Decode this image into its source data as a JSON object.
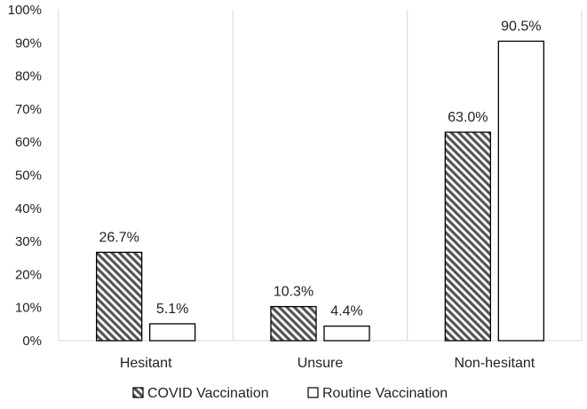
{
  "chart_data": {
    "type": "bar",
    "categories": [
      "Hesitant",
      "Unsure",
      "Non-hesitant"
    ],
    "series": [
      {
        "name": "COVID Vaccination",
        "values": [
          26.7,
          10.3,
          63.0
        ],
        "labels": [
          "26.7%",
          "10.3%",
          "63.0%"
        ],
        "pattern": "diagonal-hatch",
        "color": "#555555"
      },
      {
        "name": "Routine Vaccination",
        "values": [
          5.1,
          4.4,
          90.5
        ],
        "labels": [
          "5.1%",
          "4.4%",
          "90.5%"
        ],
        "pattern": "solid",
        "color": "#ffffff"
      }
    ],
    "ylim": [
      0,
      100
    ],
    "yticks": [
      "0%",
      "10%",
      "20%",
      "30%",
      "40%",
      "50%",
      "60%",
      "70%",
      "80%",
      "90%",
      "100%"
    ],
    "xlabel": "",
    "ylabel": "",
    "title": "",
    "grid": "vertical category separators",
    "legend_position": "bottom"
  }
}
